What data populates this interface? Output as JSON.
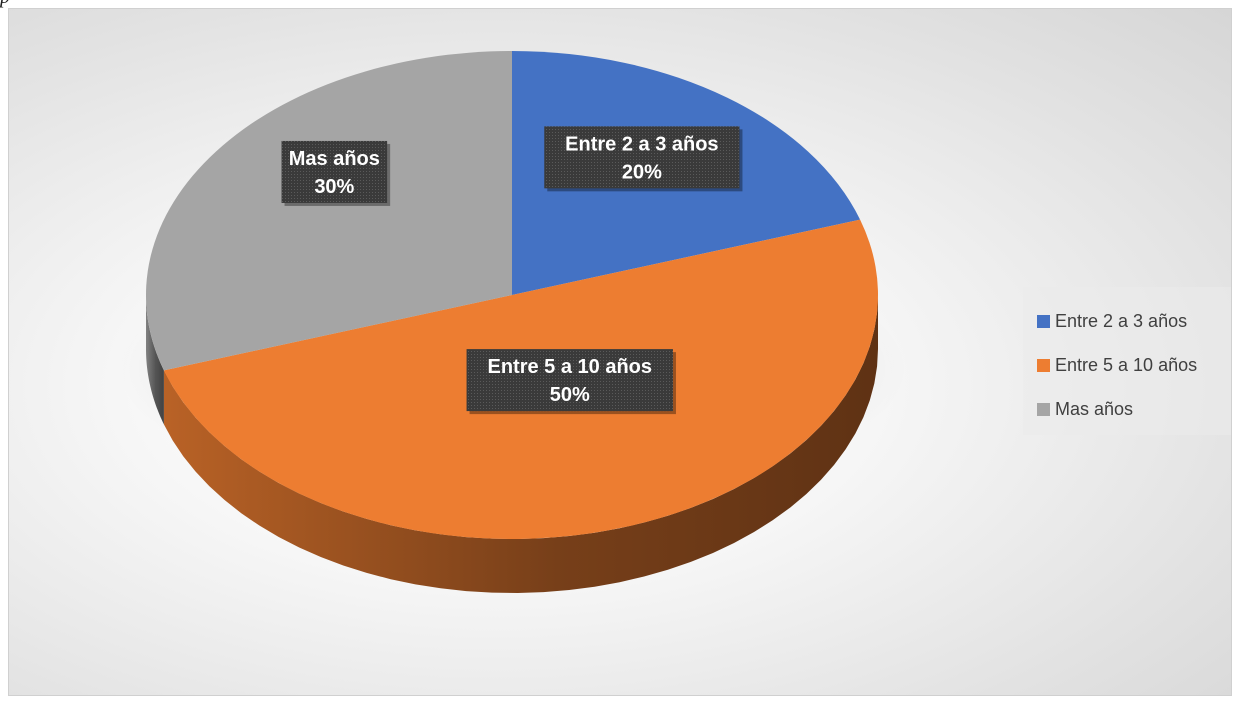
{
  "chart_data": {
    "type": "pie",
    "categories": [
      "Entre 2 a 3 años",
      "Entre 5 a 10 años",
      "Mas años"
    ],
    "values": [
      20,
      50,
      30
    ],
    "data_labels": [
      "20%",
      "50%",
      "30%"
    ],
    "colors": [
      "#4472c4",
      "#ed7d31",
      "#a5a5a5"
    ],
    "style": "3d-pie",
    "legend_position": "right"
  },
  "top_fragment": "p"
}
